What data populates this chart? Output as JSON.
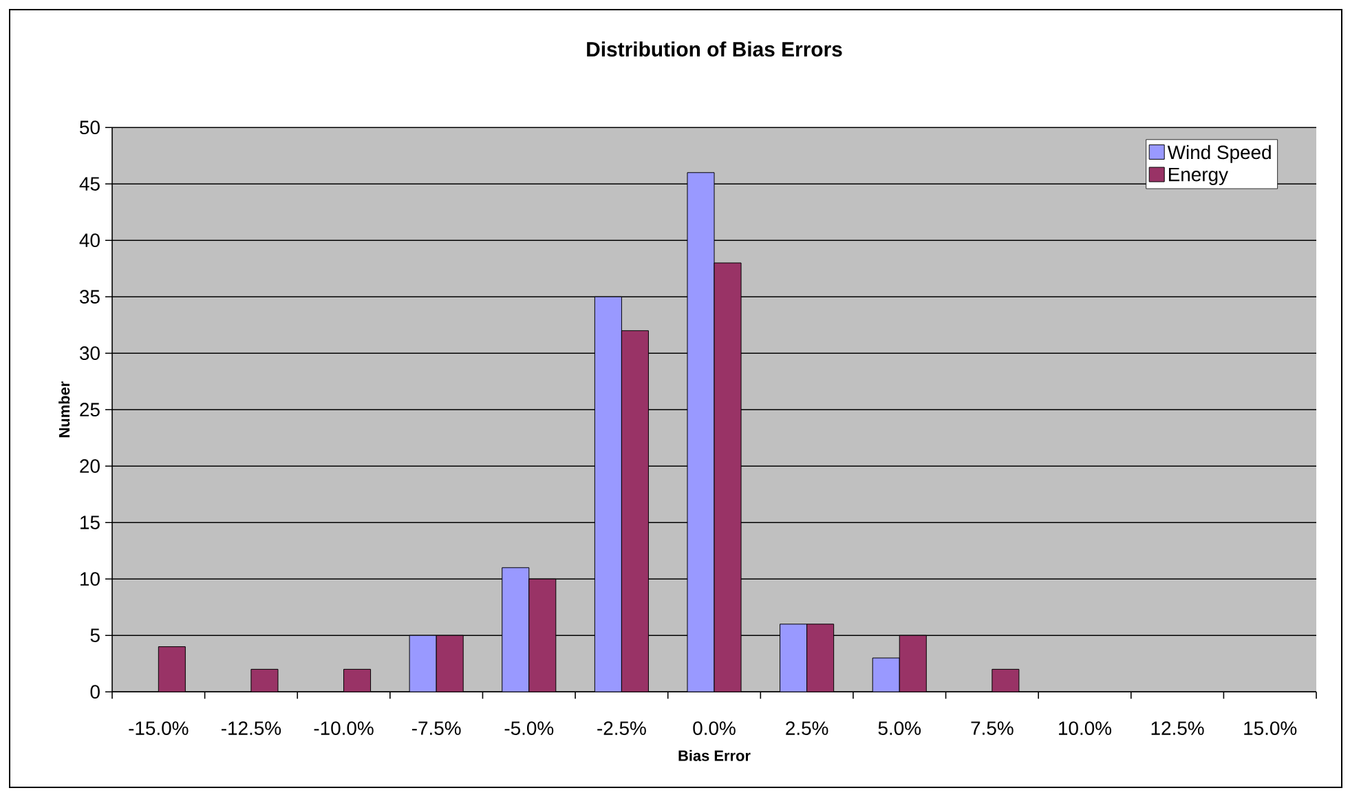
{
  "chart_data": {
    "type": "bar",
    "title": "Distribution of Bias Errors",
    "xlabel": "Bias Error",
    "ylabel": "Number",
    "categories": [
      "-15.0%",
      "-12.5%",
      "-10.0%",
      "-7.5%",
      "-5.0%",
      "-2.5%",
      "0.0%",
      "2.5%",
      "5.0%",
      "7.5%",
      "10.0%",
      "12.5%",
      "15.0%"
    ],
    "series": [
      {
        "name": "Wind Speed",
        "color": "#9999ff",
        "values": [
          0,
          0,
          0,
          5,
          11,
          35,
          46,
          6,
          3,
          0,
          0,
          0,
          0
        ]
      },
      {
        "name": "Energy",
        "color": "#993366",
        "values": [
          4,
          2,
          2,
          5,
          10,
          32,
          38,
          6,
          5,
          2,
          0,
          0,
          0
        ]
      }
    ],
    "ylim": [
      0,
      50
    ],
    "yticks": [
      0,
      5,
      10,
      15,
      20,
      25,
      30,
      35,
      40,
      45,
      50
    ],
    "grid": "y",
    "legend": "top right"
  }
}
